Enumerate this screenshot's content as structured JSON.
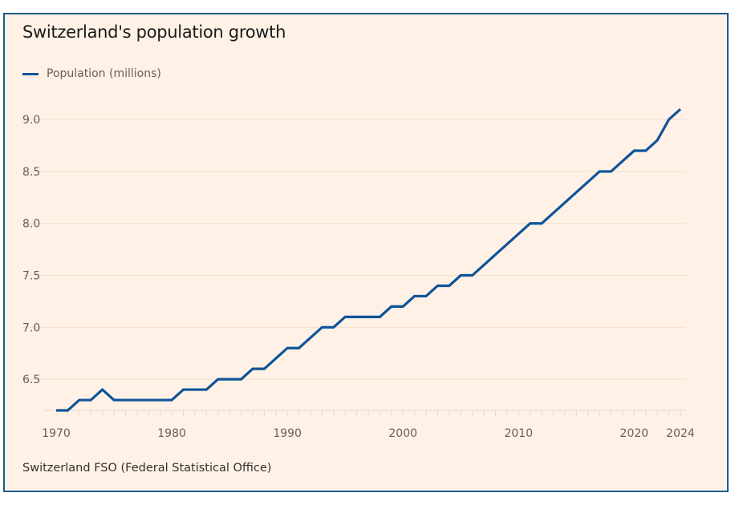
{
  "chart_data": {
    "type": "line",
    "title": "Switzerland's population growth",
    "legend": [
      "Population (millions)"
    ],
    "legend_position": "top-left",
    "source": "Switzerland FSO (Federal Statistical Office)",
    "xlabel": "",
    "ylabel": "",
    "x": [
      1970,
      1971,
      1972,
      1973,
      1974,
      1975,
      1976,
      1977,
      1978,
      1979,
      1980,
      1981,
      1982,
      1983,
      1984,
      1985,
      1986,
      1987,
      1988,
      1989,
      1990,
      1991,
      1992,
      1993,
      1994,
      1995,
      1996,
      1997,
      1998,
      1999,
      2000,
      2001,
      2002,
      2003,
      2004,
      2005,
      2006,
      2007,
      2008,
      2009,
      2010,
      2011,
      2012,
      2013,
      2014,
      2015,
      2016,
      2017,
      2018,
      2019,
      2020,
      2021,
      2022,
      2023,
      2024
    ],
    "series": [
      {
        "name": "Population (millions)",
        "color": "#0f5499",
        "values": [
          6.2,
          6.2,
          6.3,
          6.3,
          6.4,
          6.3,
          6.3,
          6.3,
          6.3,
          6.3,
          6.3,
          6.4,
          6.4,
          6.4,
          6.5,
          6.5,
          6.5,
          6.6,
          6.6,
          6.7,
          6.8,
          6.8,
          6.9,
          7.0,
          7.0,
          7.1,
          7.1,
          7.1,
          7.1,
          7.2,
          7.2,
          7.3,
          7.3,
          7.4,
          7.4,
          7.5,
          7.5,
          7.6,
          7.7,
          7.8,
          7.9,
          8.0,
          8.0,
          8.1,
          8.2,
          8.3,
          8.4,
          8.5,
          8.5,
          8.6,
          8.7,
          8.7,
          8.8,
          9.0,
          9.1
        ]
      }
    ],
    "xticks": [
      "1970",
      "1980",
      "1990",
      "2000",
      "2010",
      "2020",
      "2024"
    ],
    "yticks": [
      "6.5",
      "7.0",
      "7.5",
      "8.0",
      "8.5",
      "9.0"
    ],
    "xlim": [
      1970,
      2024
    ],
    "ylim": [
      6.2,
      9.2
    ],
    "grid": true
  }
}
